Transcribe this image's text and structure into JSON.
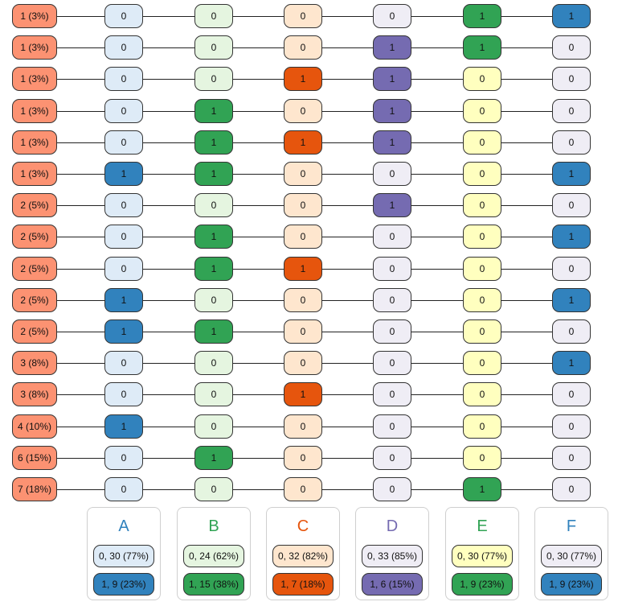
{
  "colors": {
    "count_fill": "#fc9272",
    "A": {
      "zero": "#deebf7",
      "one": "#3182bd",
      "title": "#3182bd"
    },
    "B": {
      "zero": "#e5f5e0",
      "one": "#31a354",
      "title": "#31a354"
    },
    "C": {
      "zero": "#fee6ce",
      "one": "#e6550d",
      "title": "#e6550d"
    },
    "D": {
      "zero": "#efedf5",
      "one": "#756bb1",
      "title": "#756bb1"
    },
    "E": {
      "zero": "#ffffbf",
      "one": "#31a354",
      "title": "#31a354"
    },
    "F": {
      "zero": "#efedf5",
      "one": "#3182bd",
      "title": "#3182bd"
    }
  },
  "columns": [
    "A",
    "B",
    "C",
    "D",
    "E",
    "F"
  ],
  "rows": [
    {
      "count": "1 (3%)",
      "values": [
        "0",
        "0",
        "0",
        "0",
        "1",
        "1"
      ]
    },
    {
      "count": "1 (3%)",
      "values": [
        "0",
        "0",
        "0",
        "1",
        "1",
        "0"
      ]
    },
    {
      "count": "1 (3%)",
      "values": [
        "0",
        "0",
        "1",
        "1",
        "0",
        "0"
      ]
    },
    {
      "count": "1 (3%)",
      "values": [
        "0",
        "1",
        "0",
        "1",
        "0",
        "0"
      ]
    },
    {
      "count": "1 (3%)",
      "values": [
        "0",
        "1",
        "1",
        "1",
        "0",
        "0"
      ]
    },
    {
      "count": "1 (3%)",
      "values": [
        "1",
        "1",
        "0",
        "0",
        "0",
        "1"
      ]
    },
    {
      "count": "2 (5%)",
      "values": [
        "0",
        "0",
        "0",
        "1",
        "0",
        "0"
      ]
    },
    {
      "count": "2 (5%)",
      "values": [
        "0",
        "1",
        "0",
        "0",
        "0",
        "1"
      ]
    },
    {
      "count": "2 (5%)",
      "values": [
        "0",
        "1",
        "1",
        "0",
        "0",
        "0"
      ]
    },
    {
      "count": "2 (5%)",
      "values": [
        "1",
        "0",
        "0",
        "0",
        "0",
        "1"
      ]
    },
    {
      "count": "2 (5%)",
      "values": [
        "1",
        "1",
        "0",
        "0",
        "0",
        "0"
      ]
    },
    {
      "count": "3 (8%)",
      "values": [
        "0",
        "0",
        "0",
        "0",
        "0",
        "1"
      ]
    },
    {
      "count": "3 (8%)",
      "values": [
        "0",
        "0",
        "1",
        "0",
        "0",
        "0"
      ]
    },
    {
      "count": "4 (10%)",
      "values": [
        "1",
        "0",
        "0",
        "0",
        "0",
        "0"
      ]
    },
    {
      "count": "6 (15%)",
      "values": [
        "0",
        "1",
        "0",
        "0",
        "0",
        "0"
      ]
    },
    {
      "count": "7 (18%)",
      "values": [
        "0",
        "0",
        "0",
        "0",
        "1",
        "0"
      ]
    }
  ],
  "legend": [
    {
      "title": "A",
      "zero": "0, 30 (77%)",
      "one": "1, 9 (23%)"
    },
    {
      "title": "B",
      "zero": "0, 24 (62%)",
      "one": "1, 15 (38%)"
    },
    {
      "title": "C",
      "zero": "0, 32 (82%)",
      "one": "1, 7 (18%)"
    },
    {
      "title": "D",
      "zero": "0, 33 (85%)",
      "one": "1, 6 (15%)"
    },
    {
      "title": "E",
      "zero": "0, 30 (77%)",
      "one": "1, 9 (23%)"
    },
    {
      "title": "F",
      "zero": "0, 30 (77%)",
      "one": "1, 9 (23%)"
    }
  ]
}
